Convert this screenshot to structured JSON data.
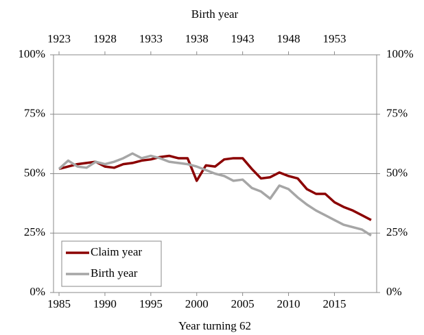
{
  "chart_data": {
    "type": "line",
    "x_label": "Year turning 62",
    "x2_label": "Birth year",
    "x": [
      1985,
      1986,
      1987,
      1988,
      1989,
      1990,
      1991,
      1992,
      1993,
      1994,
      1995,
      1996,
      1997,
      1998,
      1999,
      2000,
      2001,
      2002,
      2003,
      2004,
      2005,
      2006,
      2007,
      2008,
      2009,
      2010,
      2011,
      2012,
      2013,
      2014,
      2015,
      2016,
      2017,
      2018,
      2019
    ],
    "series": [
      {
        "name": "Claim year",
        "color": "#8b0000",
        "values": [
          52,
          53,
          54,
          54.5,
          55,
          53,
          52.5,
          54,
          54.5,
          55.5,
          56,
          57,
          57.5,
          56.5,
          56.5,
          47,
          53.5,
          53,
          56,
          56.5,
          56.5,
          52,
          48,
          48.5,
          50.5,
          49,
          48,
          43.5,
          41.5,
          41.5,
          38,
          36,
          34.5,
          32.5,
          30.5
        ]
      },
      {
        "name": "Birth year",
        "color": "#a6a6a6",
        "values": [
          52,
          55.5,
          53,
          52.5,
          55,
          54,
          55,
          56.5,
          58.5,
          56.5,
          57.5,
          56.5,
          55,
          54.5,
          54,
          53,
          51.5,
          50,
          49,
          47,
          47.5,
          44,
          42.5,
          39.5,
          45,
          43.5,
          40,
          37,
          34.5,
          32.5,
          30.5,
          28.5,
          27.5,
          26.5,
          24
        ]
      }
    ],
    "xlim": [
      1984.4,
      2019.6
    ],
    "xticks": [
      1985,
      1990,
      1995,
      2000,
      2005,
      2010,
      2015
    ],
    "x2lim": [
      1922.4,
      1957.6
    ],
    "x2ticks": [
      1923,
      1928,
      1933,
      1938,
      1943,
      1948,
      1953
    ],
    "ylim": [
      0,
      100
    ],
    "yticks": [
      {
        "value": 0,
        "label": "0%"
      },
      {
        "value": 25,
        "label": "25%"
      },
      {
        "value": 50,
        "label": "50%"
      },
      {
        "value": 75,
        "label": "75%"
      },
      {
        "value": 100,
        "label": "100%"
      }
    ],
    "y2lim": [
      0,
      100
    ],
    "y2ticks": [
      {
        "value": 0,
        "label": "0%"
      },
      {
        "value": 25,
        "label": "25%"
      },
      {
        "value": 50,
        "label": "50%"
      },
      {
        "value": 75,
        "label": "75%"
      },
      {
        "value": 100,
        "label": "100%"
      }
    ],
    "grid": true,
    "legend": "lower-left"
  }
}
